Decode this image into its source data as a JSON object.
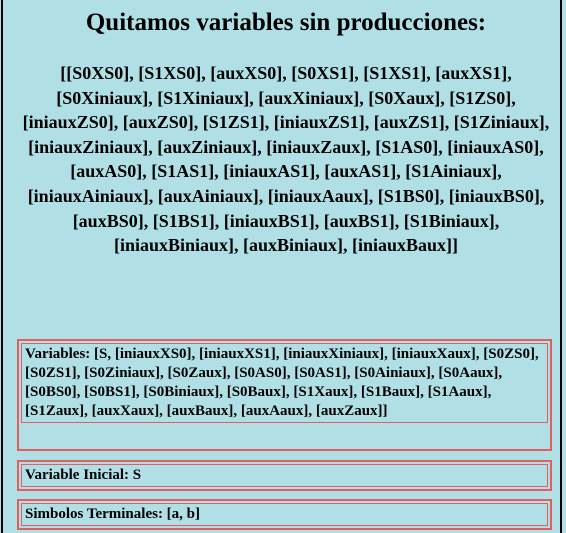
{
  "heading": "Quitamos variables sin producciones:",
  "variables_list": "[[S0XS0], [S1XS0], [auxXS0], [S0XS1], [S1XS1], [auxXS1], [S0Xiniaux], [S1Xiniaux], [auxXiniaux], [S0Xaux], [S1ZS0], [iniauxZS0], [auxZS0], [S1ZS1], [iniauxZS1], [auxZS1], [S1Ziniaux], [iniauxZiniaux], [auxZiniaux], [iniauxZaux], [S1AS0], [iniauxAS0], [auxAS0], [S1AS1], [iniauxAS1], [auxAS1], [S1Ainiaux], [iniauxAiniaux], [auxAiniaux], [iniauxAaux], [S1BS0], [iniauxBS0], [auxBS0], [S1BS1], [iniauxBS1], [auxBS1], [S1Biniaux], [iniauxBiniaux], [auxBiniaux], [iniauxBaux]]",
  "grammar": {
    "variables": "Variables: [S, [iniauxXS0], [iniauxXS1], [iniauxXiniaux], [iniauxXaux], [S0ZS0], [S0ZS1], [S0Ziniaux], [S0Zaux], [S0AS0], [S0AS1], [S0Ainiaux], [S0Aaux], [S0BS0], [S0BS1], [S0Biniaux], [S0Baux], [S1Xaux], [S1Baux], [S1Aaux], [S1Zaux], [auxXaux], [auxBaux], [auxAaux], [auxZaux]]",
    "initial_variable": "Variable Inicial: S",
    "terminals": "Simbolos Terminales: [a, b]"
  },
  "colors": {
    "background": "#b0e0e6",
    "box_border": "#e06060"
  }
}
